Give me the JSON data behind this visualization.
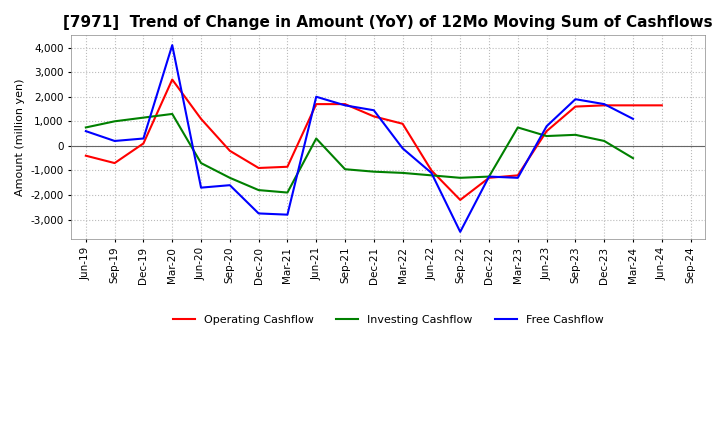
{
  "title": "[7971]  Trend of Change in Amount (YoY) of 12Mo Moving Sum of Cashflows",
  "ylabel": "Amount (million yen)",
  "x_labels": [
    "Jun-19",
    "Sep-19",
    "Dec-19",
    "Mar-20",
    "Jun-20",
    "Sep-20",
    "Dec-20",
    "Mar-21",
    "Jun-21",
    "Sep-21",
    "Dec-21",
    "Mar-22",
    "Jun-22",
    "Sep-22",
    "Dec-22",
    "Mar-23",
    "Jun-23",
    "Sep-23",
    "Dec-23",
    "Mar-24",
    "Jun-24",
    "Sep-24"
  ],
  "operating": [
    -400,
    -700,
    100,
    2700,
    1100,
    -200,
    -900,
    -850,
    1700,
    1700,
    1200,
    900,
    -1000,
    -2200,
    -1300,
    -1200,
    600,
    1600,
    1650,
    1650,
    1650,
    null
  ],
  "investing": [
    750,
    1000,
    1150,
    1300,
    -700,
    -1300,
    -1800,
    -1900,
    300,
    -950,
    -1050,
    -1100,
    -1200,
    -1300,
    -1250,
    750,
    400,
    450,
    200,
    -500,
    null,
    null
  ],
  "free": [
    600,
    200,
    300,
    4100,
    -1700,
    -1600,
    -2750,
    -2800,
    2000,
    1650,
    1450,
    -100,
    -1100,
    -3500,
    -1250,
    -1300,
    800,
    1900,
    1700,
    1100,
    null,
    null
  ],
  "operating_color": "#ff0000",
  "investing_color": "#008000",
  "free_color": "#0000ff",
  "ylim": [
    -3800,
    4500
  ],
  "yticks": [
    -3000,
    -2000,
    -1000,
    0,
    1000,
    2000,
    3000,
    4000
  ],
  "background_color": "#ffffff",
  "grid_color": "#bbbbbb",
  "title_fontsize": 11,
  "label_fontsize": 8,
  "tick_fontsize": 7.5
}
